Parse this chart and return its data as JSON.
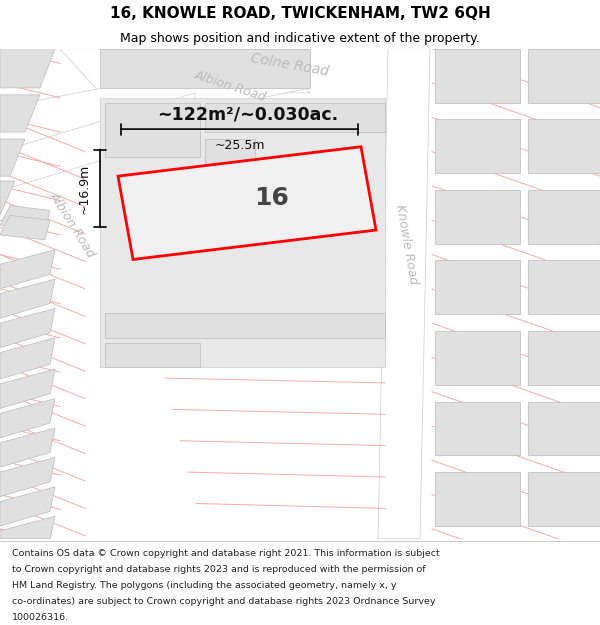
{
  "title": "16, KNOWLE ROAD, TWICKENHAM, TW2 6QH",
  "subtitle": "Map shows position and indicative extent of the property.",
  "footer_lines": [
    "Contains OS data © Crown copyright and database right 2021. This information is subject",
    "to Crown copyright and database rights 2023 and is reproduced with the permission of",
    "HM Land Registry. The polygons (including the associated geometry, namely x, y",
    "co-ordinates) are subject to Crown copyright and database rights 2023 Ordnance Survey",
    "100026316."
  ],
  "map_bg": "#f0f0f0",
  "title_area_bg": "#ffffff",
  "footer_area_bg": "#ffffff",
  "road_fill": "#ffffff",
  "building_fill": "#e0e0e0",
  "building_stroke": "#bbbbbb",
  "pink_line_color": "#f5aaaa",
  "red_property_color": "#ff0000",
  "road_label_color": "#bbbbbb",
  "area_text": "~122m²/~0.030ac.",
  "property_number": "16",
  "dim_width": "~25.5m",
  "dim_height": "~16.9m",
  "colne_road_label": "Colne Road",
  "albion_road_label1": "Albion Road",
  "albion_road_label2": "Albion Road",
  "knowle_road_label": "Knowle Road"
}
